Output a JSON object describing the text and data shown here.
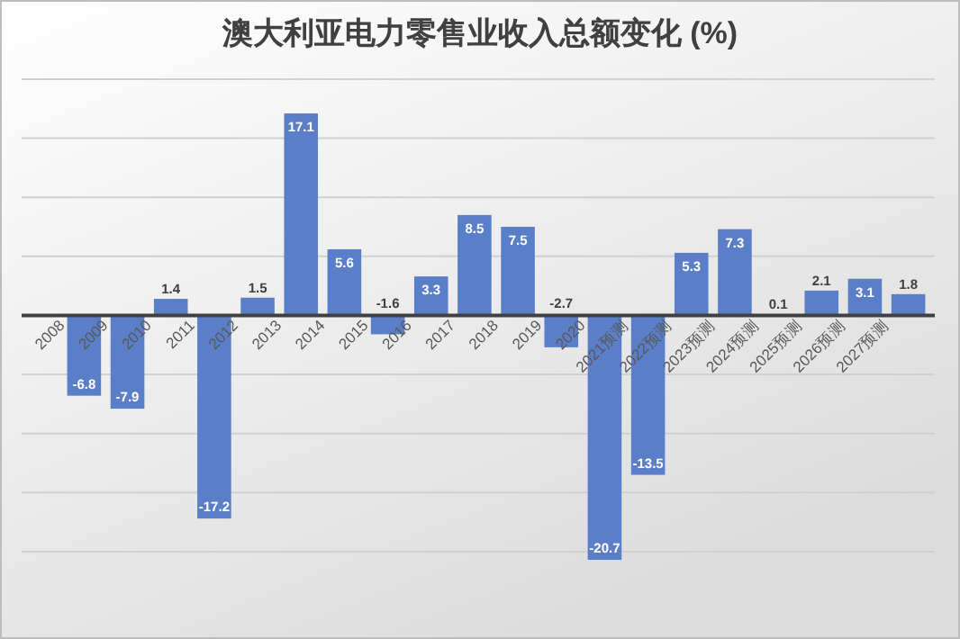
{
  "chart_data": {
    "type": "bar",
    "title": "澳大利亚电力零售业收入总额变化 (%)",
    "categories": [
      "2008",
      "2009",
      "2010",
      "2011",
      "2012",
      "2013",
      "2014",
      "2015",
      "2016",
      "2017",
      "2018",
      "2019",
      "2020",
      "2021预测",
      "2022预测",
      "2023预测",
      "2024预测",
      "2025预测",
      "2026预测",
      "2027预测"
    ],
    "values": [
      -6.8,
      -7.9,
      1.4,
      -17.2,
      1.5,
      17.1,
      5.6,
      -1.6,
      3.3,
      8.5,
      7.5,
      -2.7,
      -20.7,
      -13.5,
      5.3,
      7.3,
      0.1,
      2.1,
      3.1,
      1.8
    ],
    "color": "#5b7ec8",
    "data_labels": true,
    "ylim": [
      -21,
      20
    ],
    "yticks": [
      {
        "value": -20,
        "label": null
      },
      {
        "value": -15,
        "label": null
      },
      {
        "value": -10,
        "label": null
      },
      {
        "value": -5,
        "label": null
      },
      {
        "value": 0,
        "label": null
      },
      {
        "value": 5,
        "label": null
      },
      {
        "value": 10,
        "label": null
      },
      {
        "value": 15,
        "label": null
      },
      {
        "value": 20,
        "label": null
      }
    ],
    "tick_labels": "x",
    "grid": "y"
  }
}
